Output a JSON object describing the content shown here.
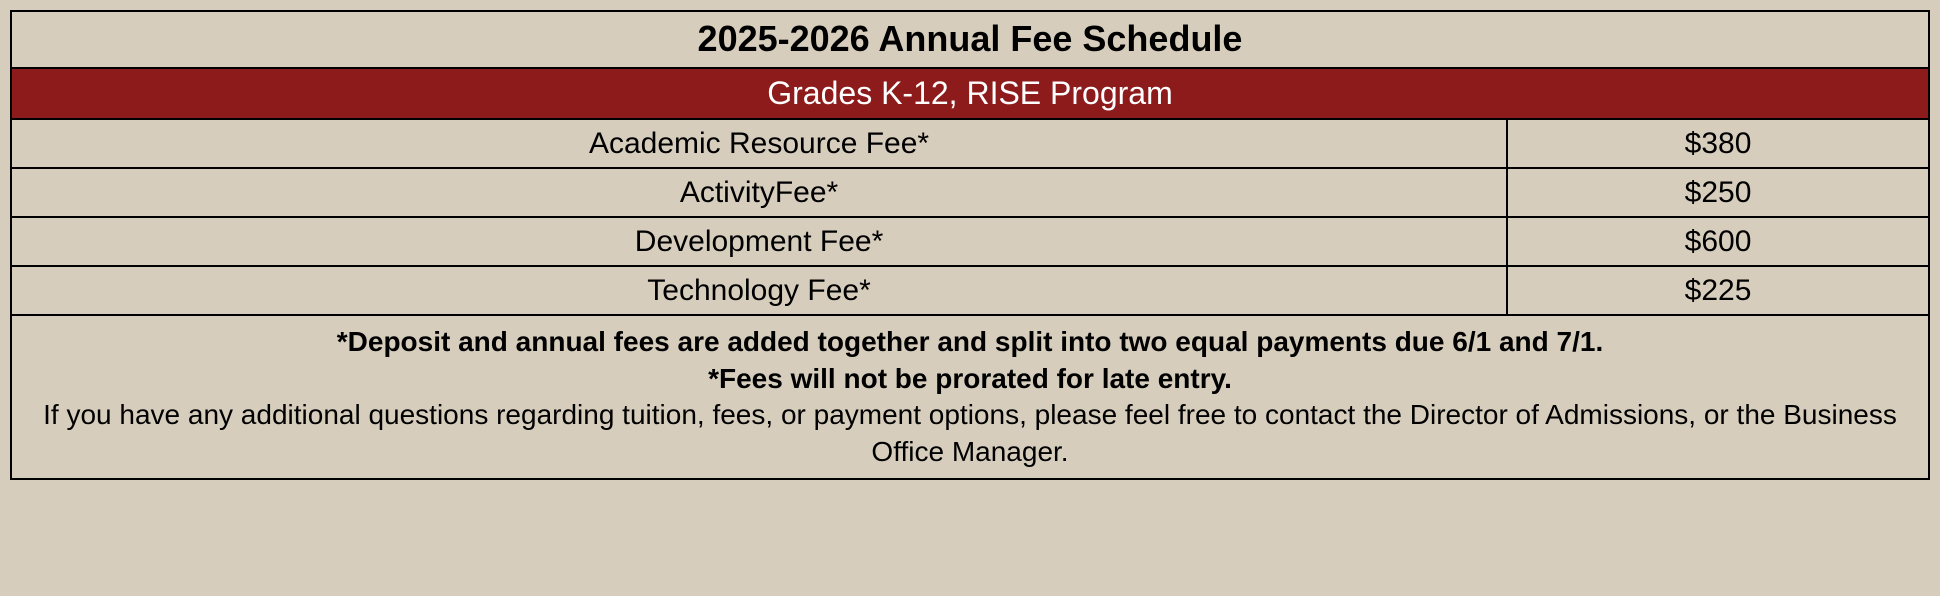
{
  "title": "2025-2026 Annual Fee Schedule",
  "subtitle": "Grades K-12, RISE Program",
  "rows": [
    {
      "label": "Academic Resource Fee*",
      "amount": "$380"
    },
    {
      "label": "ActivityFee*",
      "amount": "$250"
    },
    {
      "label": "Development Fee*",
      "amount": "$600"
    },
    {
      "label": "Technology Fee*",
      "amount": "$225"
    }
  ],
  "footer": {
    "bold_line1": "*Deposit and annual fees are added together and split into two equal payments due 6/1 and 7/1.",
    "bold_line2": "*Fees will not be prorated for late entry.",
    "text": "If you have any additional questions regarding tuition, fees, or payment options, please feel free to contact the Director of Admissions, or the Business Office Manager."
  },
  "colors": {
    "background": "#d6cdbd",
    "subtitle_bg": "#8d1b1b",
    "subtitle_text": "#ffffff",
    "border": "#000000"
  }
}
